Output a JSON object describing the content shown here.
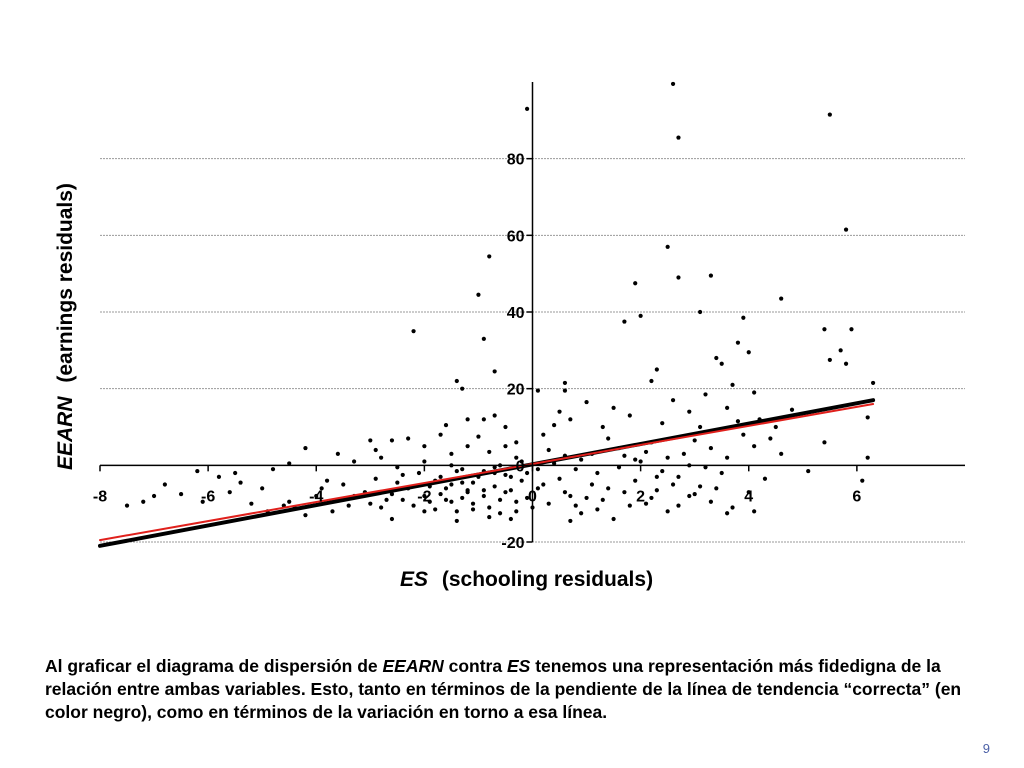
{
  "chart_data": {
    "type": "scatter",
    "title": "",
    "xlabel_var": "ES",
    "xlabel_rest": "(schooling residuals)",
    "ylabel_var": "EEARN",
    "ylabel_rest": "(earnings residuals)",
    "xlim": [
      -8,
      8
    ],
    "ylim": [
      -20,
      100
    ],
    "x_ticks": [
      -8,
      -6,
      -4,
      -2,
      0,
      2,
      4,
      6
    ],
    "y_ticks": [
      -20,
      0,
      20,
      40,
      60,
      80
    ],
    "grid": "horizontal",
    "colors": {
      "points": "#000000",
      "correct_line": "#000000",
      "other_line": "#e0201c",
      "grid": "#9a9a9a"
    },
    "lines": [
      {
        "name": "correct",
        "color": "#000000",
        "x": [
          -8,
          6.3
        ],
        "y": [
          -21,
          17
        ]
      },
      {
        "name": "other",
        "color": "#e0201c",
        "x": [
          -8,
          6.3
        ],
        "y": [
          -19.5,
          16
        ]
      }
    ],
    "points": [
      [
        -0.1,
        93
      ],
      [
        2.6,
        99.5
      ],
      [
        2.7,
        85.5
      ],
      [
        5.5,
        91.5
      ],
      [
        5.8,
        61.5
      ],
      [
        2.5,
        57
      ],
      [
        3.3,
        49.5
      ],
      [
        2.7,
        49
      ],
      [
        1.9,
        47.5
      ],
      [
        4.6,
        43.5
      ],
      [
        -1,
        44.5
      ],
      [
        -0.8,
        54.5
      ],
      [
        1.7,
        37.5
      ],
      [
        2,
        39
      ],
      [
        3.1,
        40
      ],
      [
        3.9,
        38.5
      ],
      [
        -2.2,
        35
      ],
      [
        5.4,
        35.5
      ],
      [
        5.9,
        35.5
      ],
      [
        -0.9,
        33
      ],
      [
        5.7,
        30
      ],
      [
        5.5,
        27.5
      ],
      [
        5.8,
        26.5
      ],
      [
        6.3,
        21.5
      ],
      [
        3.4,
        28
      ],
      [
        3.5,
        26.5
      ],
      [
        3.7,
        21
      ],
      [
        4,
        29.5
      ],
      [
        3.8,
        32
      ],
      [
        -0.7,
        24.5
      ],
      [
        -1.4,
        22
      ],
      [
        -1.3,
        20
      ],
      [
        0.6,
        21.5
      ],
      [
        0.6,
        19.5
      ],
      [
        0.1,
        19.5
      ],
      [
        2.3,
        25
      ],
      [
        2.2,
        22
      ],
      [
        1,
        16.5
      ],
      [
        1.5,
        15
      ],
      [
        2.6,
        17
      ],
      [
        3.2,
        18.5
      ],
      [
        4.1,
        19
      ],
      [
        3.6,
        15
      ],
      [
        4.2,
        12
      ],
      [
        -1.2,
        12
      ],
      [
        -0.9,
        12
      ],
      [
        -0.7,
        13
      ],
      [
        -1.6,
        10.5
      ],
      [
        0.5,
        14
      ],
      [
        0.7,
        12
      ],
      [
        1.8,
        13
      ],
      [
        2.4,
        11
      ],
      [
        3.1,
        10
      ],
      [
        3.9,
        8
      ],
      [
        4.5,
        10
      ],
      [
        -2.3,
        7
      ],
      [
        -2.6,
        6.5
      ],
      [
        -3,
        6.5
      ],
      [
        -4.2,
        4.5
      ],
      [
        -4.5,
        0.5
      ],
      [
        -3.3,
        1
      ],
      [
        -2.8,
        2
      ],
      [
        -2.5,
        -0.5
      ],
      [
        -2,
        1
      ],
      [
        -1.5,
        3
      ],
      [
        -1.2,
        5
      ],
      [
        -0.8,
        3.5
      ],
      [
        -0.5,
        5
      ],
      [
        -0.3,
        2
      ],
      [
        0.3,
        4
      ],
      [
        0.6,
        2.5
      ],
      [
        1.1,
        3
      ],
      [
        1.6,
        4.5
      ],
      [
        1.9,
        1.5
      ],
      [
        2.2,
        6
      ],
      [
        2.5,
        2
      ],
      [
        2.9,
        0
      ],
      [
        3.3,
        4.5
      ],
      [
        3.6,
        2
      ],
      [
        4.1,
        5
      ],
      [
        4.6,
        3
      ],
      [
        5.1,
        -1.5
      ],
      [
        5.4,
        6
      ],
      [
        6.2,
        12.5
      ],
      [
        6.2,
        2
      ],
      [
        6.1,
        -4
      ],
      [
        -7.5,
        -10.5
      ],
      [
        -7,
        -8
      ],
      [
        -6.5,
        -7.5
      ],
      [
        -6.1,
        -9.5
      ],
      [
        -5.8,
        -3
      ],
      [
        -5.5,
        -2
      ],
      [
        -5.2,
        -10
      ],
      [
        -4.9,
        -12
      ],
      [
        -4.6,
        -10.5
      ],
      [
        -4.4,
        -11
      ],
      [
        -4.2,
        -13
      ],
      [
        -3.9,
        -6
      ],
      [
        -3.6,
        -9
      ],
      [
        -3.3,
        -8
      ],
      [
        -3,
        -10
      ],
      [
        -2.8,
        -11
      ],
      [
        -2.6,
        -7.5
      ],
      [
        -2.4,
        -9
      ],
      [
        -2.2,
        -10.5
      ],
      [
        -2,
        -8
      ],
      [
        -1.8,
        -11.5
      ],
      [
        -1.6,
        -6
      ],
      [
        -1.5,
        -9.5
      ],
      [
        -1.4,
        -12
      ],
      [
        -1.3,
        -4.5
      ],
      [
        -1.2,
        -7
      ],
      [
        -1.1,
        -10
      ],
      [
        -1,
        -3
      ],
      [
        -0.9,
        -8
      ],
      [
        -0.8,
        -11
      ],
      [
        -0.7,
        -5.5
      ],
      [
        -0.6,
        -9
      ],
      [
        -0.5,
        -2.5
      ],
      [
        -0.4,
        -6.5
      ],
      [
        -0.3,
        -12
      ],
      [
        -0.2,
        -4
      ],
      [
        -0.1,
        -8.5
      ],
      [
        0.1,
        -6
      ],
      [
        0.3,
        -10
      ],
      [
        0.5,
        -3.5
      ],
      [
        0.7,
        -8
      ],
      [
        0.9,
        -12.5
      ],
      [
        1.1,
        -5
      ],
      [
        1.3,
        -9
      ],
      [
        1.5,
        -14
      ],
      [
        1.7,
        -7
      ],
      [
        1.9,
        -4
      ],
      [
        2.1,
        -10
      ],
      [
        2.3,
        -6.5
      ],
      [
        2.5,
        -12
      ],
      [
        2.7,
        -3
      ],
      [
        2.9,
        -8
      ],
      [
        3.1,
        -5.5
      ],
      [
        3.3,
        -9.5
      ],
      [
        3.5,
        -2
      ],
      [
        3.7,
        -11
      ],
      [
        4,
        -7
      ],
      [
        4.3,
        -3.5
      ],
      [
        -3.8,
        -4
      ],
      [
        -3.5,
        -5
      ],
      [
        -2.9,
        -3.5
      ],
      [
        -2.5,
        -4.5
      ],
      [
        -2.1,
        -2
      ],
      [
        -1.7,
        -3
      ],
      [
        -1.3,
        -1
      ],
      [
        -0.9,
        -1.5
      ],
      [
        -0.6,
        0
      ],
      [
        -0.2,
        1
      ],
      [
        0.4,
        0.5
      ],
      [
        0.8,
        -1
      ],
      [
        1.2,
        -2
      ],
      [
        1.6,
        -0.5
      ],
      [
        2,
        1
      ],
      [
        2.4,
        -1.5
      ],
      [
        2.8,
        3
      ],
      [
        3.2,
        -0.5
      ],
      [
        -1.9,
        -5.5
      ],
      [
        -1.7,
        -7.5
      ],
      [
        -1.5,
        -5
      ],
      [
        -1.1,
        -4.5
      ],
      [
        -0.7,
        -2
      ],
      [
        -0.4,
        -3
      ],
      [
        -1.3,
        -8.5
      ],
      [
        -0.9,
        -6.5
      ],
      [
        -2.3,
        -6
      ],
      [
        -1.6,
        -9
      ],
      [
        -1.2,
        -6.5
      ],
      [
        -0.5,
        -7
      ],
      [
        0.2,
        -5
      ],
      [
        1,
        -8.5
      ],
      [
        2.2,
        -8.5
      ],
      [
        3,
        -7.5
      ],
      [
        -4,
        -8
      ],
      [
        -3.1,
        -7
      ],
      [
        -2.7,
        -9
      ],
      [
        -1.8,
        -4
      ],
      [
        -0.3,
        -9.5
      ],
      [
        0.6,
        -7
      ],
      [
        1.4,
        -6
      ],
      [
        2.6,
        -5
      ],
      [
        3.4,
        -6
      ],
      [
        -6.2,
        -1.5
      ],
      [
        -5,
        -6
      ],
      [
        -3.4,
        -10.5
      ],
      [
        -2,
        -12
      ],
      [
        -1.4,
        -14.5
      ],
      [
        -0.8,
        -13.5
      ],
      [
        0,
        -11
      ],
      [
        1.2,
        -11.5
      ],
      [
        -1.9,
        -9.5
      ],
      [
        -1.1,
        -11.5
      ],
      [
        -0.6,
        -12.5
      ],
      [
        0.8,
        -10.5
      ],
      [
        1.8,
        -10.5
      ],
      [
        -2.4,
        -2.5
      ],
      [
        -1.4,
        -1.5
      ],
      [
        -0.1,
        -2
      ],
      [
        0.9,
        1.5
      ],
      [
        2.1,
        3.5
      ],
      [
        3,
        6.5
      ],
      [
        1.4,
        7
      ],
      [
        0.2,
        8
      ],
      [
        -0.5,
        10
      ],
      [
        -1.7,
        8
      ],
      [
        -2.9,
        4
      ],
      [
        -3.6,
        3
      ],
      [
        -4.8,
        -1
      ],
      [
        -5.4,
        -4.5
      ],
      [
        4.4,
        7
      ],
      [
        3.8,
        11.5
      ],
      [
        4.8,
        14.5
      ],
      [
        2.9,
        14
      ],
      [
        1.3,
        10
      ],
      [
        0.4,
        10.5
      ],
      [
        -0.3,
        6
      ],
      [
        -1,
        7.5
      ],
      [
        -2,
        5
      ],
      [
        -1.5,
        0
      ],
      [
        -0.7,
        -0.5
      ],
      [
        0.1,
        -1
      ],
      [
        1.7,
        2.5
      ],
      [
        2.3,
        -3
      ],
      [
        2.7,
        -10.5
      ],
      [
        3.6,
        -12.5
      ],
      [
        4.1,
        -12
      ],
      [
        -0.4,
        -14
      ],
      [
        0.7,
        -14.5
      ],
      [
        -2.6,
        -14
      ],
      [
        -3.7,
        -12
      ],
      [
        -4.5,
        -9.5
      ],
      [
        -5.6,
        -7
      ],
      [
        -6.8,
        -5
      ],
      [
        -7.2,
        -9.5
      ]
    ]
  },
  "caption": {
    "p1": "Al graficar el diagrama de dispersión de ",
    "v1": "EEARN",
    "p2": " contra ",
    "v2": "ES",
    "p3": " tenemos una representación más fidedigna de la relación entre ambas variables. Esto, tanto en términos de la pendiente de la línea de tendencia “correcta” (en color negro), como en términos de la variación en torno a esa línea."
  },
  "page_number": "9"
}
